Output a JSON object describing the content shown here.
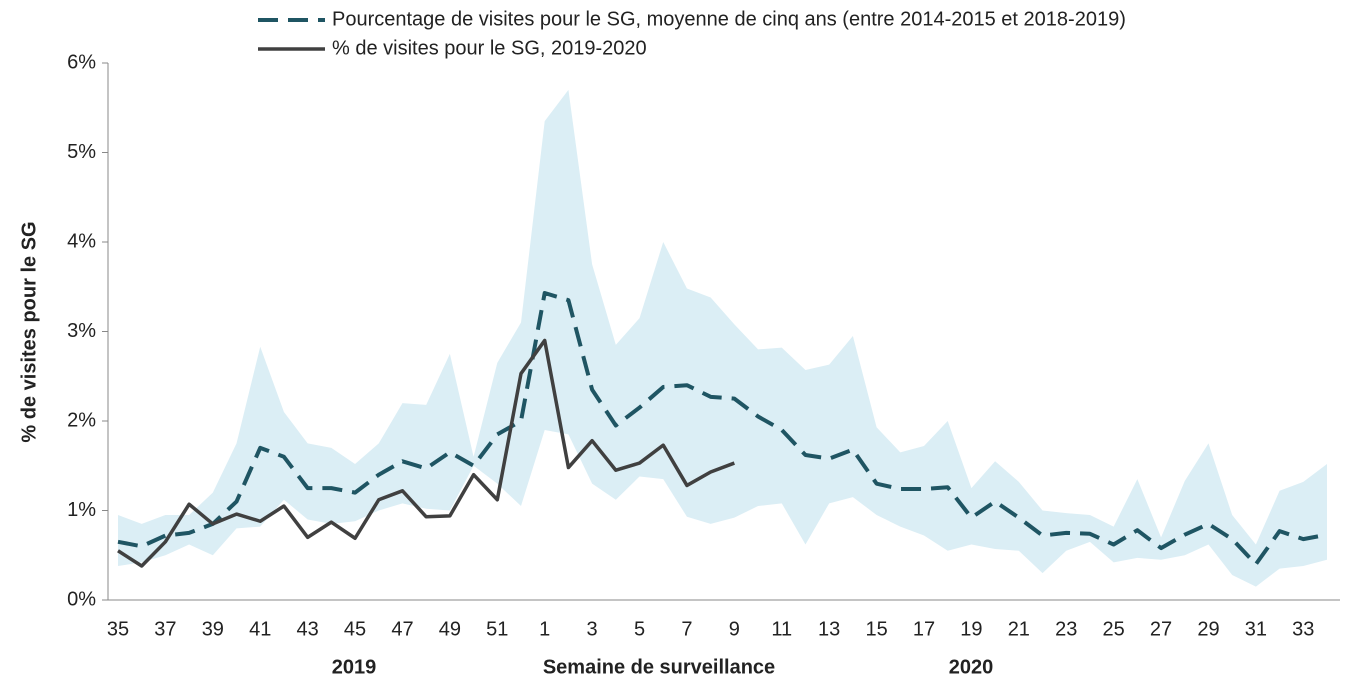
{
  "chart_data": {
    "type": "line",
    "ylabel": "% de visites pour le SG",
    "xlabel": "Semaine de surveillance",
    "annotations": [
      "2019",
      "2020"
    ],
    "categories": [
      "35",
      null,
      "37",
      null,
      "39",
      null,
      "41",
      null,
      "43",
      null,
      "45",
      null,
      "47",
      null,
      "49",
      null,
      "51",
      null,
      "1",
      null,
      "3",
      null,
      "5",
      null,
      "7",
      null,
      "9",
      null,
      "11",
      null,
      "13",
      null,
      "15",
      null,
      "17",
      null,
      "19",
      null,
      "21",
      null,
      "23",
      null,
      "25",
      null,
      "27",
      null,
      "29",
      null,
      "31",
      null,
      "33",
      null
    ],
    "ylim": [
      0,
      6
    ],
    "yticks": [
      {
        "value": 0,
        "label": "0%"
      },
      {
        "value": 1,
        "label": "1%"
      },
      {
        "value": 2,
        "label": "2%"
      },
      {
        "value": 3,
        "label": "3%"
      },
      {
        "value": 4,
        "label": "4%"
      },
      {
        "value": 5,
        "label": "5%"
      },
      {
        "value": 6,
        "label": "6%"
      }
    ],
    "band": {
      "color": "#dbeef5",
      "upper": [
        0.95,
        0.85,
        0.95,
        0.95,
        1.2,
        1.75,
        2.83,
        2.1,
        1.75,
        1.7,
        1.52,
        1.75,
        2.2,
        2.18,
        2.75,
        1.6,
        2.65,
        3.1,
        5.35,
        5.7,
        3.75,
        2.85,
        3.15,
        4.0,
        3.48,
        3.38,
        3.08,
        2.8,
        2.82,
        2.57,
        2.63,
        2.95,
        1.93,
        1.65,
        1.72,
        2.0,
        1.25,
        1.55,
        1.32,
        1.0,
        0.97,
        0.95,
        0.82,
        1.35,
        0.7,
        1.33,
        1.75,
        0.95,
        0.62,
        1.22,
        1.32,
        1.52
      ],
      "lower": [
        0.38,
        0.42,
        0.5,
        0.62,
        0.5,
        0.8,
        0.82,
        1.12,
        0.9,
        0.85,
        0.88,
        1.0,
        1.08,
        1.02,
        1.0,
        1.5,
        1.3,
        1.05,
        1.9,
        1.85,
        1.3,
        1.12,
        1.38,
        1.35,
        0.93,
        0.85,
        0.92,
        1.05,
        1.08,
        0.62,
        1.08,
        1.15,
        0.95,
        0.82,
        0.72,
        0.55,
        0.62,
        0.57,
        0.55,
        0.3,
        0.55,
        0.65,
        0.42,
        0.47,
        0.45,
        0.5,
        0.62,
        0.28,
        0.15,
        0.35,
        0.38,
        0.45
      ]
    },
    "series": [
      {
        "name": "Pourcentage de visites pour le SG, moyenne de cinq ans (entre 2014-2015 et 2018-2019)",
        "color": "#1f5563",
        "dashed": true,
        "values": [
          0.65,
          0.6,
          0.72,
          0.75,
          0.85,
          1.1,
          1.7,
          1.6,
          1.25,
          1.25,
          1.2,
          1.4,
          1.55,
          1.47,
          1.65,
          1.5,
          1.85,
          2.0,
          3.43,
          3.35,
          2.35,
          1.95,
          2.15,
          2.38,
          2.4,
          2.27,
          2.25,
          2.05,
          1.9,
          1.62,
          1.58,
          1.68,
          1.3,
          1.24,
          1.24,
          1.26,
          0.92,
          1.1,
          0.92,
          0.72,
          0.75,
          0.74,
          0.62,
          0.78,
          0.58,
          0.73,
          0.85,
          0.68,
          0.4,
          0.77,
          0.68,
          0.73
        ]
      },
      {
        "name": "% de visites pour le SG, 2019-2020",
        "color": "#404040",
        "dashed": false,
        "values": [
          0.55,
          0.38,
          0.65,
          1.07,
          0.85,
          0.96,
          0.88,
          1.05,
          0.7,
          0.87,
          0.69,
          1.12,
          1.22,
          0.93,
          0.94,
          1.4,
          1.12,
          2.53,
          2.9,
          1.48,
          1.78,
          1.45,
          1.53,
          1.73,
          1.28,
          1.43,
          1.53,
          null,
          null,
          null,
          null,
          null,
          null,
          null,
          null,
          null,
          null,
          null,
          null,
          null,
          null,
          null,
          null,
          null,
          null,
          null,
          null,
          null,
          null,
          null,
          null,
          null
        ]
      }
    ]
  }
}
